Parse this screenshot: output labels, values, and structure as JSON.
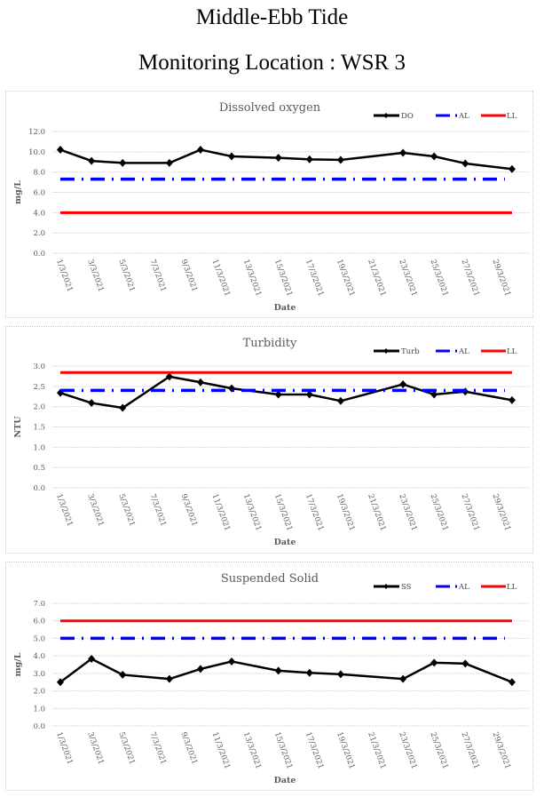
{
  "header": {
    "title": "Middle-Ebb Tide",
    "subtitle": "Monitoring Location : WSR 3"
  },
  "colors": {
    "measured": "#000000",
    "action_level": "#0000ff",
    "limit_level": "#ff0000",
    "text": "#595959"
  },
  "chart_data": [
    {
      "type": "line",
      "title": "Dissolved oxygen",
      "xlabel": "Date",
      "ylabel": "mg/L",
      "ylim": [
        0,
        12
      ],
      "ytick_step": 2,
      "ytick_labels": [
        "0.0",
        "2.0",
        "4.0",
        "6.0",
        "8.0",
        "10.0",
        "12.0"
      ],
      "x_tick_labels": [
        "1/3/2021",
        "3/3/2021",
        "5/3/2021",
        "7/3/2021",
        "9/3/2021",
        "11/3/2021",
        "13/3/2021",
        "15/3/2021",
        "17/3/2021",
        "19/3/2021",
        "21/3/2021",
        "23/3/2021",
        "25/3/2021",
        "27/3/2021",
        "29/3/2021"
      ],
      "x_range_days": [
        1,
        30
      ],
      "grid": true,
      "legend_position": "top-right",
      "legend": [
        "DO",
        "AL",
        "LL"
      ],
      "x_days": [
        1,
        3,
        5,
        8,
        10,
        12,
        15,
        17,
        19,
        23,
        25,
        27,
        30
      ],
      "series": [
        {
          "name": "DO",
          "style": "solid-marker",
          "values": [
            10.2,
            9.1,
            8.9,
            8.9,
            10.2,
            9.55,
            9.4,
            9.25,
            9.2,
            9.9,
            9.55,
            8.85,
            8.3
          ]
        },
        {
          "name": "AL",
          "style": "dash-dot",
          "constant": 7.3
        },
        {
          "name": "LL",
          "style": "solid",
          "constant": 4.0
        }
      ]
    },
    {
      "type": "line",
      "title": "Turbidity",
      "xlabel": "Date",
      "ylabel": "NTU",
      "ylim": [
        0,
        3
      ],
      "ytick_step": 0.5,
      "ytick_labels": [
        "0.0",
        "0.5",
        "1.0",
        "1.5",
        "2.0",
        "2.5",
        "3.0"
      ],
      "x_tick_labels": [
        "1/3/2021",
        "3/3/2021",
        "5/3/2021",
        "7/3/2021",
        "9/3/2021",
        "11/3/2021",
        "13/3/2021",
        "15/3/2021",
        "17/3/2021",
        "19/3/2021",
        "21/3/2021",
        "23/3/2021",
        "25/3/2021",
        "27/3/2021",
        "29/3/2021"
      ],
      "x_range_days": [
        1,
        30
      ],
      "grid": true,
      "legend_position": "top-right",
      "legend": [
        "Turb",
        "AL",
        "LL"
      ],
      "x_days": [
        1,
        3,
        5,
        8,
        10,
        12,
        15,
        17,
        19,
        23,
        25,
        27,
        30
      ],
      "series": [
        {
          "name": "Turb",
          "style": "solid-marker",
          "values": [
            2.34,
            2.09,
            1.97,
            2.74,
            2.6,
            2.45,
            2.3,
            2.3,
            2.14,
            2.55,
            2.3,
            2.37,
            2.16
          ]
        },
        {
          "name": "AL",
          "style": "dash-dot",
          "constant": 2.4
        },
        {
          "name": "LL",
          "style": "solid",
          "constant": 2.84
        }
      ]
    },
    {
      "type": "line",
      "title": "Suspended Solid",
      "xlabel": "Date",
      "ylabel": "mg/L",
      "ylim": [
        0,
        7
      ],
      "ytick_step": 1,
      "ytick_labels": [
        "0.0",
        "1.0",
        "2.0",
        "3.0",
        "4.0",
        "5.0",
        "6.0",
        "7.0"
      ],
      "x_tick_labels": [
        "1/3/2021",
        "3/3/2021",
        "5/3/2021",
        "7/3/2021",
        "9/3/2021",
        "11/3/2021",
        "13/3/2021",
        "15/3/2021",
        "17/3/2021",
        "19/3/2021",
        "21/3/2021",
        "23/3/2021",
        "25/3/2021",
        "27/3/2021",
        "29/3/2021"
      ],
      "x_range_days": [
        1,
        30
      ],
      "grid": true,
      "legend_position": "top-right",
      "legend": [
        "SS",
        "AL",
        "LL"
      ],
      "x_days": [
        1,
        3,
        5,
        8,
        10,
        12,
        15,
        17,
        19,
        23,
        25,
        27,
        30
      ],
      "series": [
        {
          "name": "SS",
          "style": "solid-marker",
          "values": [
            2.5,
            3.83,
            2.92,
            2.68,
            3.25,
            3.68,
            3.15,
            3.03,
            2.95,
            2.68,
            3.61,
            3.56,
            2.5
          ]
        },
        {
          "name": "AL",
          "style": "dash-dot",
          "constant": 5.0
        },
        {
          "name": "LL",
          "style": "solid",
          "constant": 6.0
        }
      ]
    }
  ]
}
